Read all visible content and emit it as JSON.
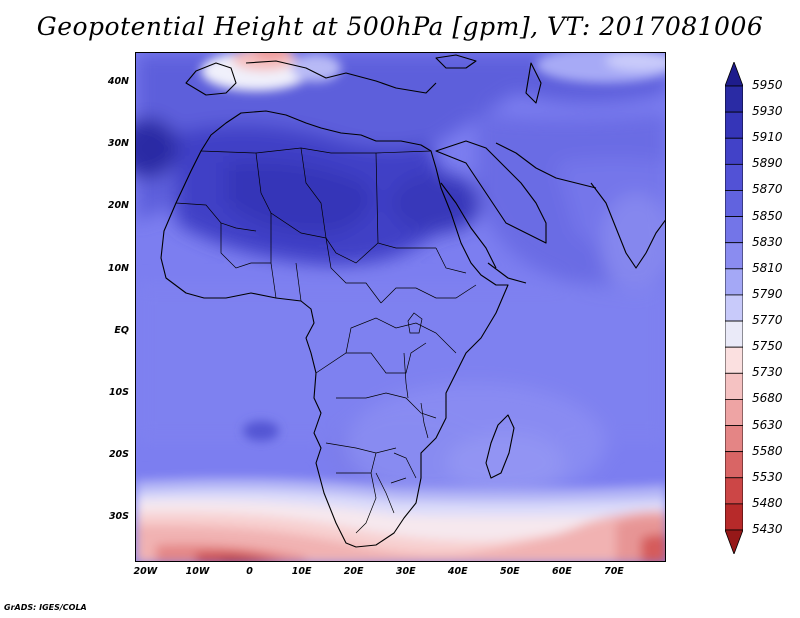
{
  "title": "Geopotential Height at 500hPa [gpm], VT: 2017081006",
  "credit": "GrADS: IGES/COLA",
  "axes": {
    "lat_labels": [
      "40N",
      "30N",
      "20N",
      "10N",
      "EQ",
      "10S",
      "20S",
      "30S"
    ],
    "lat_values": [
      40,
      30,
      20,
      10,
      0,
      -10,
      -20,
      -30
    ],
    "lon_labels": [
      "20W",
      "10W",
      "0",
      "10E",
      "20E",
      "30E",
      "40E",
      "50E",
      "60E",
      "70E"
    ],
    "lon_values": [
      -20,
      -10,
      0,
      10,
      20,
      30,
      40,
      50,
      60,
      70
    ],
    "lon_range": [
      -22,
      80
    ],
    "lat_range": [
      -37,
      45
    ]
  },
  "colorbar": {
    "labels": [
      "5950",
      "5930",
      "5910",
      "5890",
      "5870",
      "5850",
      "5830",
      "5810",
      "5790",
      "5770",
      "5750",
      "5730",
      "5680",
      "5630",
      "5580",
      "5530",
      "5480",
      "5430"
    ],
    "colors": [
      "#1e1c8c",
      "#2a2ba4",
      "#3535b8",
      "#4242c8",
      "#5252d6",
      "#6163df",
      "#7375e8",
      "#8a8cf0",
      "#a4a8f6",
      "#c8cafa",
      "#eaeaf8",
      "#fbe0e0",
      "#f5c2c2",
      "#eea4a4",
      "#e48585",
      "#d96565",
      "#cc4646",
      "#b72a2a",
      "#961818"
    ]
  }
}
